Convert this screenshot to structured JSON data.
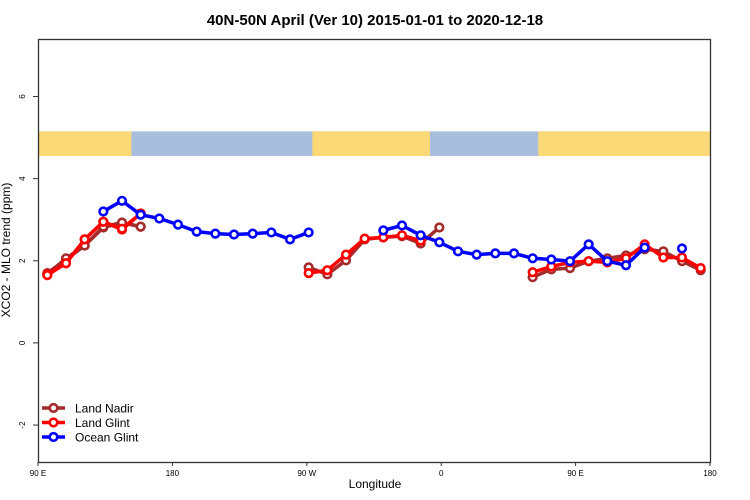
{
  "chart_data": {
    "type": "line",
    "title": "40N-50N April (Ver 10)   2015-01-01 to 2020-12-18",
    "xlabel": "Longitude",
    "ylabel": "XCO2 - MLO trend (ppm)",
    "xlim": [
      "90 E",
      "180 (wrapped, 90 E to 180 shown twice)"
    ],
    "ylim": [
      -2.9,
      7.4
    ],
    "x_ticks": [
      {
        "lon": 90,
        "label": "90 E"
      },
      {
        "lon": 180,
        "label": "180"
      },
      {
        "lon": -90,
        "label": "90 W"
      },
      {
        "lon": 0,
        "label": "0"
      },
      {
        "lon": 90,
        "label": "90 E"
      },
      {
        "lon": 180,
        "label": "180"
      }
    ],
    "y_ticks": [
      -2,
      0,
      2,
      4,
      6
    ],
    "grid": false,
    "legend_position": "bottom-left",
    "map_strip": {
      "ymin": 4.55,
      "ymax": 5.15,
      "land_color": "#FDD876",
      "ocean_color": "#A8BEDC",
      "land_lon_ranges": [
        [
          90,
          140
        ],
        [
          -123,
          -60
        ],
        [
          -2,
          143
        ]
      ]
    },
    "series": [
      {
        "name": "Land Nadir",
        "color": "#A52A2A",
        "segments": [
          {
            "lon": [
              95,
              105,
              115,
              125,
              135,
              145
            ],
            "values": [
              1.7,
              2.03,
              2.37,
              2.81,
              2.93,
              2.83
            ]
          },
          {
            "lon": [
              -125,
              -115,
              -105,
              -95,
              -85,
              -75,
              -65,
              -55
            ],
            "values": [
              1.84,
              1.67,
              2.01,
              2.52,
              2.57,
              2.6,
              2.42,
              2.81
            ]
          },
          {
            "lon": [
              -5,
              5,
              15,
              25,
              35,
              45,
              55,
              65,
              75,
              85,
              95,
              105,
              115,
              125,
              135,
              145
            ],
            "values": [
              1.6,
              1.79,
              1.82,
              1.99,
              2.06,
              2.13,
              2.28,
              2.23,
              1.99,
              1.77,
              1.67,
              2.06,
              2.37,
              2.83,
              2.93,
              2.83
            ]
          }
        ]
      },
      {
        "name": "Land Glint",
        "color": "#FF0000",
        "segments": [
          {
            "lon": [
              95,
              105,
              115,
              125,
              135,
              145
            ],
            "values": [
              1.67,
              1.94,
              2.52,
              2.95,
              2.76,
              3.15
            ]
          },
          {
            "lon": [
              -125,
              -115,
              -105,
              -95,
              -85,
              -75,
              -65
            ],
            "values": [
              1.7,
              1.77,
              2.15,
              2.54,
              2.57,
              2.62,
              2.49
            ]
          },
          {
            "lon": [
              -5,
              5,
              15,
              25,
              35,
              45,
              55,
              65,
              75,
              85,
              95,
              105,
              115,
              125,
              135,
              145
            ],
            "values": [
              1.72,
              1.86,
              1.96,
              1.99,
              1.96,
              2.06,
              2.4,
              2.08,
              2.08,
              1.82,
              1.65,
              1.94,
              2.52,
              2.95,
              2.78,
              3.15
            ]
          }
        ]
      },
      {
        "name": "Ocean Glint",
        "color": "#0000FF",
        "segments": [
          {
            "lon": [
              125,
              135,
              145,
              155,
              165,
              175,
              -175,
              -165,
              -155,
              -145,
              -135,
              -125
            ],
            "values": [
              3.2,
              3.46,
              3.12,
              3.03,
              2.88,
              2.71,
              2.66,
              2.64,
              2.66,
              2.69,
              2.52,
              2.69
            ]
          },
          {
            "lon": [
              -85,
              -75,
              -65,
              -55,
              -45,
              -35,
              -25,
              -15,
              -5,
              5,
              15,
              25,
              35,
              45,
              55
            ],
            "values": [
              2.74,
              2.86,
              2.62,
              2.45,
              2.23,
              2.15,
              2.18,
              2.18,
              2.06,
              2.03,
              1.99,
              2.4,
              1.99,
              1.89,
              2.32
            ]
          },
          {
            "lon": [
              75
            ],
            "values": [
              2.3
            ]
          }
        ]
      }
    ]
  }
}
